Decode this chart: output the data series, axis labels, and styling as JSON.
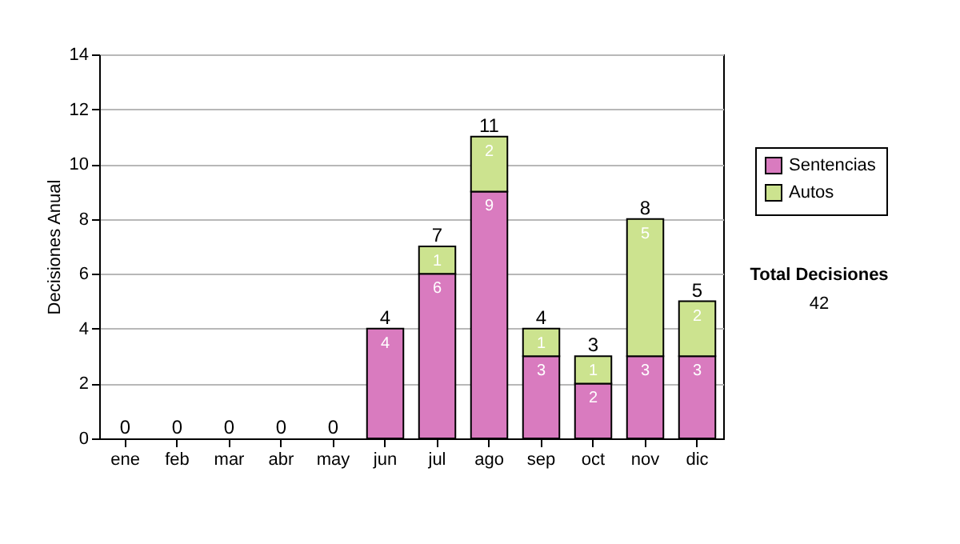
{
  "chart_data": {
    "type": "bar",
    "ylabel": "Decisiones Anual",
    "categories": [
      "ene",
      "feb",
      "mar",
      "abr",
      "may",
      "jun",
      "jul",
      "ago",
      "sep",
      "oct",
      "nov",
      "dic"
    ],
    "stacked": true,
    "series": [
      {
        "name": "Sentencias",
        "color": "#d97bbf",
        "values": [
          0,
          0,
          0,
          0,
          0,
          4,
          6,
          9,
          3,
          2,
          3,
          3
        ],
        "value_labels": [
          null,
          null,
          null,
          null,
          null,
          "4",
          "6",
          "9",
          "3",
          "2",
          "3",
          "3"
        ]
      },
      {
        "name": "Autos",
        "color": "#cce38f",
        "values": [
          0,
          0,
          0,
          0,
          0,
          0,
          1,
          2,
          1,
          1,
          5,
          2
        ],
        "value_labels": [
          null,
          null,
          null,
          null,
          null,
          null,
          "1",
          "2",
          "1",
          "1",
          "5",
          "2"
        ]
      }
    ],
    "totals": [
      "0",
      "0",
      "0",
      "0",
      "0",
      "4",
      "7",
      "11",
      "4",
      "3",
      "8",
      "5"
    ],
    "ylim": [
      0,
      14
    ],
    "yticks": [
      0,
      2,
      4,
      6,
      8,
      10,
      12,
      14
    ],
    "grid": "y",
    "legend": "right",
    "annotations": [
      "Total Decisiones",
      "42"
    ]
  }
}
